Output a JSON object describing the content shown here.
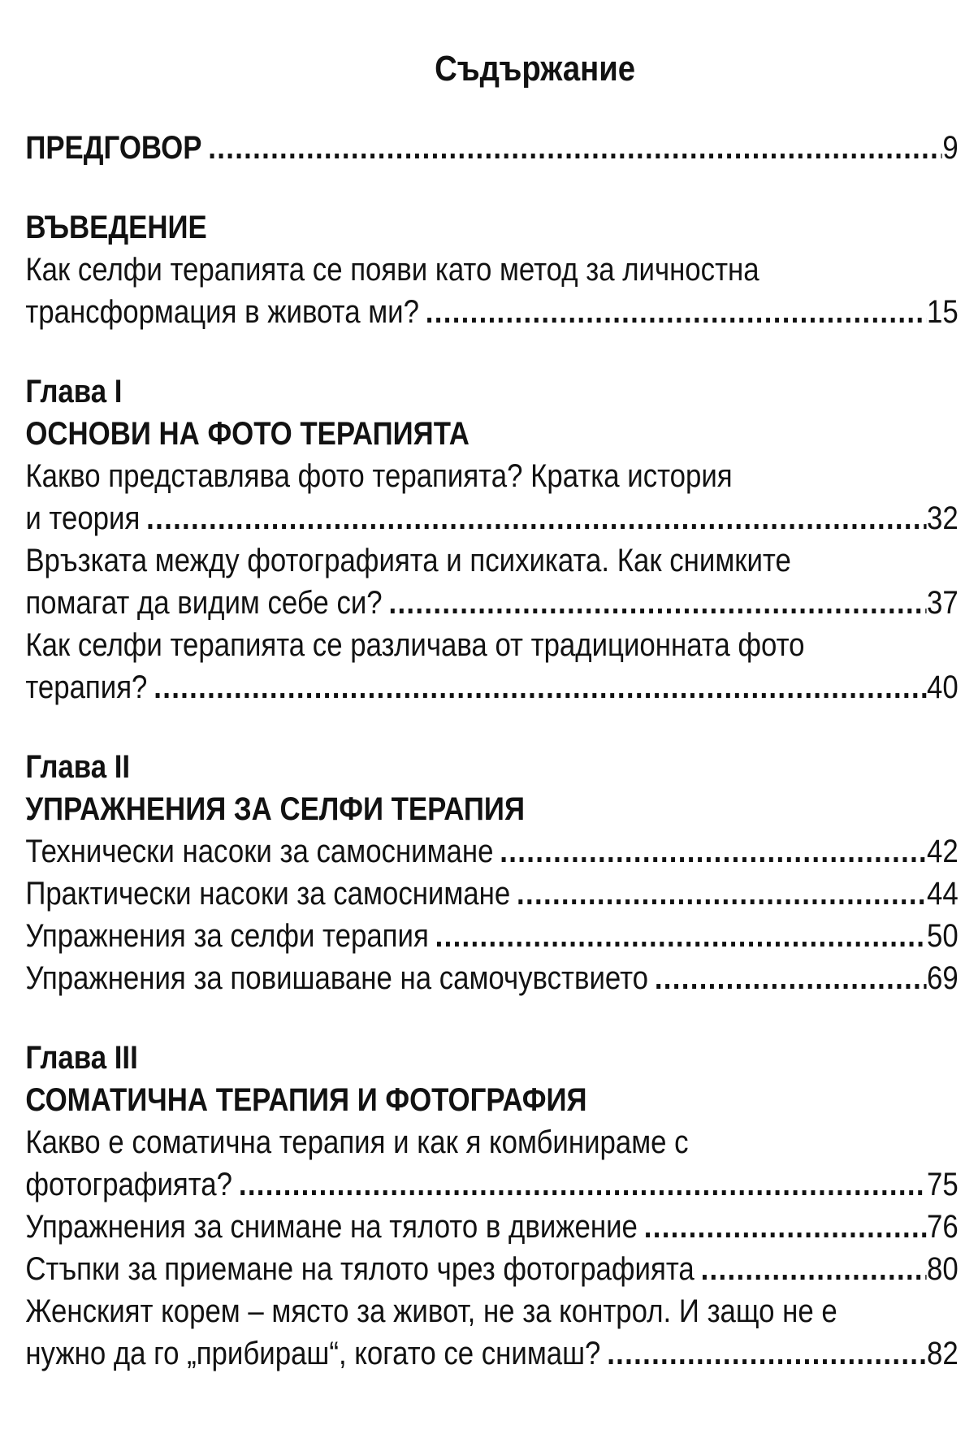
{
  "page_title": "Съдържание",
  "toc": [
    {
      "kind": "entry-bold",
      "text": "ПРЕДГОВОР",
      "page": "9"
    },
    {
      "kind": "heading",
      "text": "ВЪВЕДЕНИЕ"
    },
    {
      "kind": "entry",
      "lines": [
        "Как селфи терапията се появи като метод за личностна"
      ],
      "text": "трансформация в живота ми?",
      "page": "15"
    },
    {
      "kind": "heading",
      "text": "Глава I"
    },
    {
      "kind": "heading",
      "text": "ОСНОВИ НА ФОТО ТЕРАПИЯТА"
    },
    {
      "kind": "entry",
      "lines": [
        "Какво представлява фото терапията? Кратка история"
      ],
      "text": "и теория",
      "page": "32"
    },
    {
      "kind": "entry",
      "lines": [
        "Връзката между фотографията и психиката. Как снимките"
      ],
      "text": "помагат да видим себе си?",
      "page": "37"
    },
    {
      "kind": "entry",
      "lines": [
        "Как селфи терапията се различава от традиционната фото"
      ],
      "text": "терапия?",
      "page": "40"
    },
    {
      "kind": "heading",
      "text": "Глава II"
    },
    {
      "kind": "heading",
      "text": "УПРАЖНЕНИЯ ЗА СЕЛФИ ТЕРАПИЯ"
    },
    {
      "kind": "entry",
      "lines": [],
      "text": "Технически насоки за самоснимане",
      "page": "42"
    },
    {
      "kind": "entry",
      "lines": [],
      "text": "Практически насоки за самоснимане",
      "page": "44"
    },
    {
      "kind": "entry",
      "lines": [],
      "text": "Упражнения за селфи терапия",
      "page": "50"
    },
    {
      "kind": "entry",
      "lines": [],
      "text": "Упражнения за повишаване на самочувствието",
      "page": "69"
    },
    {
      "kind": "heading",
      "text": "Глава III"
    },
    {
      "kind": "heading",
      "text": "СОМАТИЧНА ТЕРАПИЯ И ФОТОГРАФИЯ"
    },
    {
      "kind": "entry",
      "lines": [
        "Какво е соматична терапия и как я комбинираме с"
      ],
      "text": "фотографията?",
      "page": "75"
    },
    {
      "kind": "entry",
      "lines": [],
      "text": "Упражнения за снимане на тялото в движение",
      "page": "76"
    },
    {
      "kind": "entry",
      "lines": [],
      "text": "Стъпки за приемане на тялото чрез фотографията",
      "page": "80"
    },
    {
      "kind": "entry",
      "lines": [
        "Женският корем – място за живот, не за контрол. И защо не е"
      ],
      "text": "нужно да го „прибираш“, когато се снимаш?",
      "page": "82"
    }
  ]
}
